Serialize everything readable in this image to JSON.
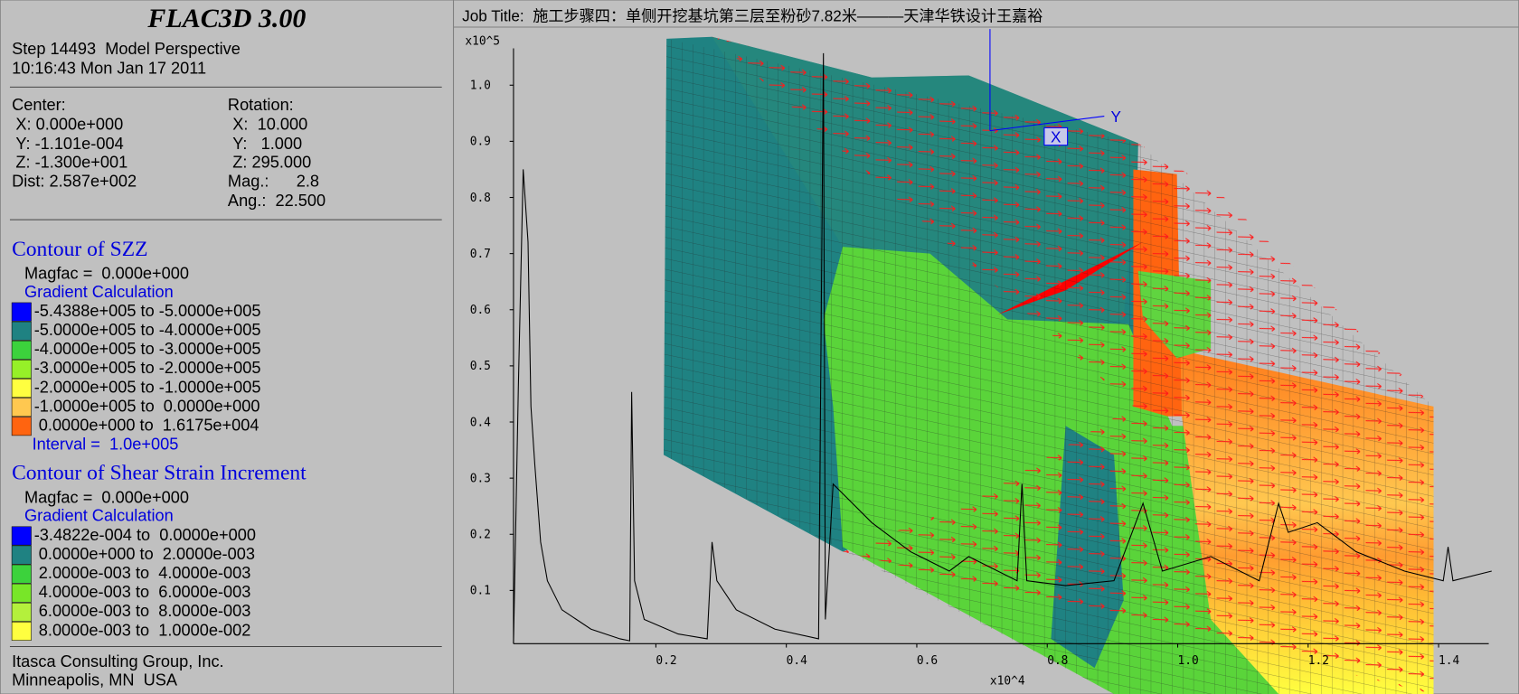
{
  "header": {
    "title": "FLAC3D 3.00",
    "step": "Step 14493  Model Perspective",
    "time": "10:16:43 Mon Jan 17 2011"
  },
  "view": {
    "center_label": "Center:",
    "center": [
      "X: 0.000e+000",
      "Y: -1.101e-004",
      "Z: -1.300e+001"
    ],
    "dist": "Dist: 2.587e+002",
    "rotation_label": "Rotation:",
    "rotation": [
      "X:  10.000",
      "Y:   1.000",
      "Z: 295.000"
    ],
    "mag": "Mag.:      2.8",
    "ang": "Ang.:  22.500"
  },
  "contours": [
    {
      "title": "Contour of SZZ",
      "magfac": "Magfac =  0.000e+000",
      "method": "Gradient Calculation",
      "ranges": [
        {
          "label": "-5.4388e+005 to -5.0000e+005",
          "color": "#0000ff"
        },
        {
          "label": "-5.0000e+005 to -4.0000e+005",
          "color": "#1f8282"
        },
        {
          "label": "-4.0000e+005 to -3.0000e+005",
          "color": "#3cd23c"
        },
        {
          "label": "-3.0000e+005 to -2.0000e+005",
          "color": "#96f028"
        },
        {
          "label": "-2.0000e+005 to -1.0000e+005",
          "color": "#ffff40"
        },
        {
          "label": "-1.0000e+005 to  0.0000e+000",
          "color": "#ffc850"
        },
        {
          "label": " 0.0000e+000 to  1.6175e+004",
          "color": "#ff6410"
        }
      ],
      "interval": "Interval =  1.0e+005"
    },
    {
      "title": "Contour of Shear Strain Increment",
      "magfac": "Magfac =  0.000e+000",
      "method": "Gradient Calculation",
      "ranges": [
        {
          "label": "-3.4822e-004 to  0.0000e+000",
          "color": "#0000ff"
        },
        {
          "label": " 0.0000e+000 to  2.0000e-003",
          "color": "#1f8282"
        },
        {
          "label": " 2.0000e-003 to  4.0000e-003",
          "color": "#3cd23c"
        },
        {
          "label": " 4.0000e-003 to  6.0000e-003",
          "color": "#78e628"
        },
        {
          "label": " 6.0000e-003 to  8.0000e-003",
          "color": "#b4f03c"
        },
        {
          "label": " 8.0000e-003 to  1.0000e-002",
          "color": "#ffff40"
        }
      ]
    }
  ],
  "footer": {
    "company": "Itasca Consulting Group, Inc.",
    "location": "Minneapolis, MN  USA"
  },
  "plot": {
    "job_title": "Job Title:  施工步骤四：单侧开挖基坑第三层至粉砂7.82米———天津华铁设计王嘉裕",
    "y_multiplier": "x10^5",
    "yticks": [
      "1.0",
      "0.9",
      "0.8",
      "0.7",
      "0.6",
      "0.5",
      "0.4",
      "0.3",
      "0.2",
      "0.1"
    ],
    "x_multiplier": "x10^4",
    "xticks": [
      "0.2",
      "0.4",
      "0.6",
      "0.8",
      "1.0",
      "1.2",
      "1.4"
    ],
    "axis_x": "X",
    "axis_y": "Y"
  }
}
